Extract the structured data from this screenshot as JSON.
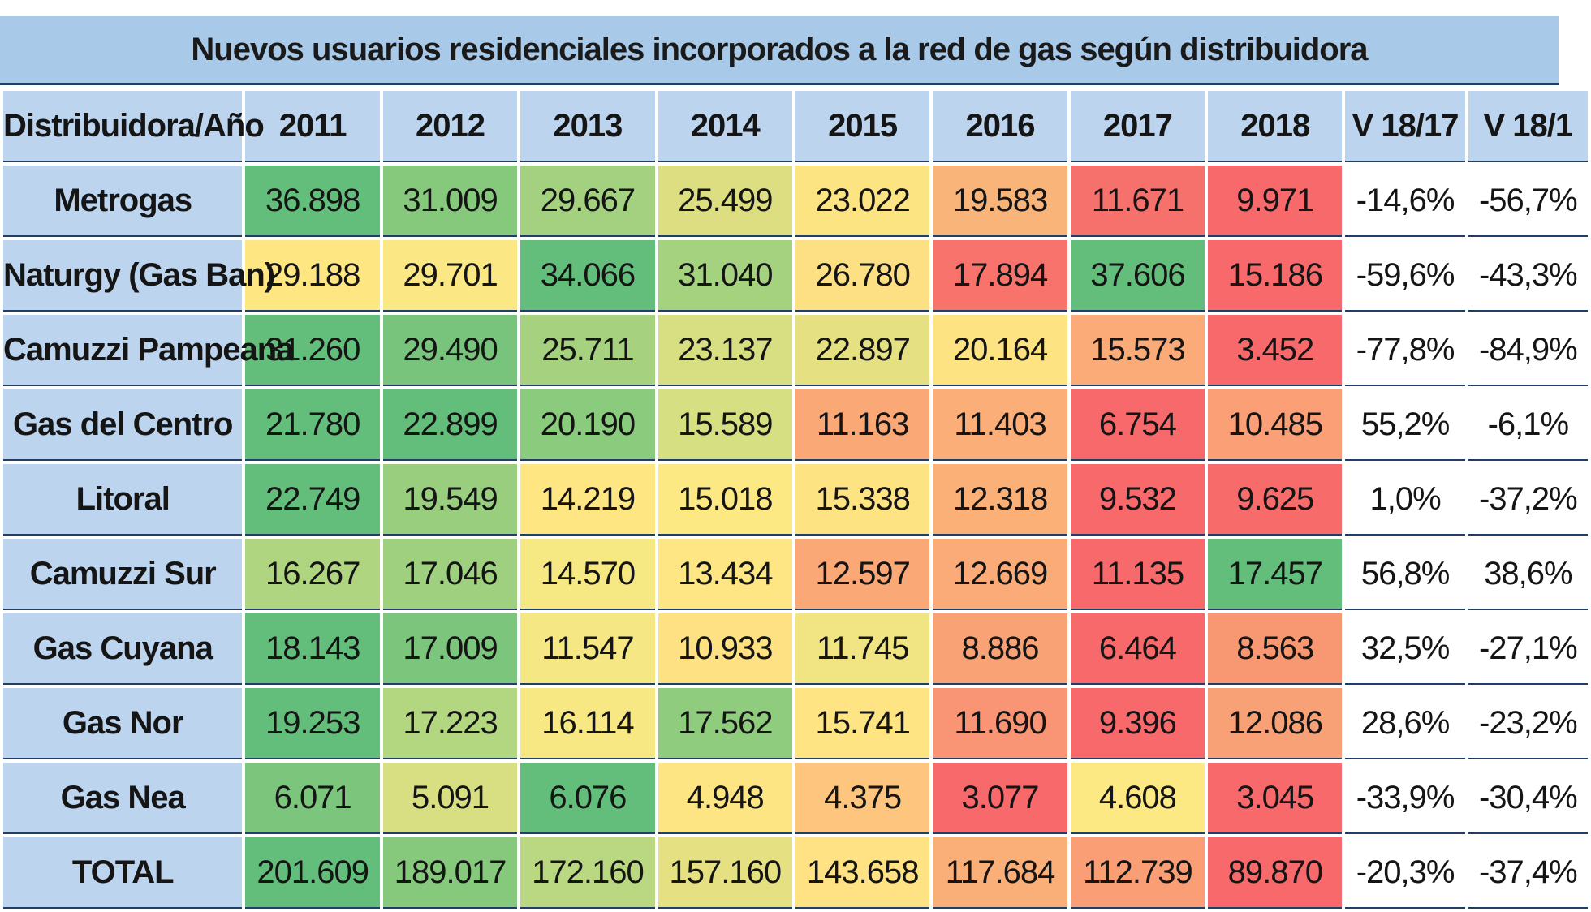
{
  "title": "Nuevos usuarios residenciales incorporados a la red de gas según distribuidora",
  "header": {
    "row_label": "Distribuidora/Año",
    "years": [
      "2011",
      "2012",
      "2013",
      "2014",
      "2015",
      "2016",
      "2017",
      "2018"
    ],
    "var1": "V 18/17",
    "var2": "V 18/1"
  },
  "rows": [
    {
      "name": "Metrogas",
      "values": [
        "36.898",
        "31.009",
        "29.667",
        "25.499",
        "23.022",
        "19.583",
        "11.671",
        "9.971"
      ],
      "var1": "-14,6%",
      "var2": "-56,7%"
    },
    {
      "name": "Naturgy (Gas Ban)",
      "values": [
        "29.188",
        "29.701",
        "34.066",
        "31.040",
        "26.780",
        "17.894",
        "37.606",
        "15.186"
      ],
      "var1": "-59,6%",
      "var2": "-43,3%"
    },
    {
      "name": "Camuzzi Pampeana",
      "values": [
        "31.260",
        "29.490",
        "25.711",
        "23.137",
        "22.897",
        "20.164",
        "15.573",
        "3.452"
      ],
      "var1": "-77,8%",
      "var2": "-84,9%"
    },
    {
      "name": "Gas del Centro",
      "values": [
        "21.780",
        "22.899",
        "20.190",
        "15.589",
        "11.163",
        "11.403",
        "6.754",
        "10.485"
      ],
      "var1": "55,2%",
      "var2": "-6,1%"
    },
    {
      "name": "Litoral",
      "values": [
        "22.749",
        "19.549",
        "14.219",
        "15.018",
        "15.338",
        "12.318",
        "9.532",
        "9.625"
      ],
      "var1": "1,0%",
      "var2": "-37,2%"
    },
    {
      "name": "Camuzzi Sur",
      "values": [
        "16.267",
        "17.046",
        "14.570",
        "13.434",
        "12.597",
        "12.669",
        "11.135",
        "17.457"
      ],
      "var1": "56,8%",
      "var2": "38,6%"
    },
    {
      "name": "Gas Cuyana",
      "values": [
        "18.143",
        "17.009",
        "11.547",
        "10.933",
        "11.745",
        "8.886",
        "6.464",
        "8.563"
      ],
      "var1": "32,5%",
      "var2": "-27,1%"
    },
    {
      "name": "Gas Nor",
      "values": [
        "19.253",
        "17.223",
        "16.114",
        "17.562",
        "15.741",
        "11.690",
        "9.396",
        "12.086"
      ],
      "var1": "28,6%",
      "var2": "-23,2%"
    },
    {
      "name": "Gas Nea",
      "values": [
        "6.071",
        "5.091",
        "6.076",
        "4.948",
        "4.375",
        "3.077",
        "4.608",
        "3.045"
      ],
      "var1": "-33,9%",
      "var2": "-30,4%"
    },
    {
      "name": "TOTAL",
      "values": [
        "201.609",
        "189.017",
        "172.160",
        "157.160",
        "143.658",
        "117.684",
        "112.739",
        "89.870"
      ],
      "var1": "-20,3%",
      "var2": "-37,4%"
    }
  ],
  "colors": {
    "rows": [
      [
        "#63be7b",
        "#86c97d",
        "#a3d17f",
        "#ddde82",
        "#fde483",
        "#f9b47a",
        "#f6716b",
        "#f8696b"
      ],
      [
        "#fee783",
        "#fbe783",
        "#63be7b",
        "#a5d27f",
        "#fde083",
        "#f8736b",
        "#63be7b",
        "#f8696b"
      ],
      [
        "#63be7b",
        "#79c47c",
        "#a6d27f",
        "#d7df82",
        "#e5e182",
        "#fde382",
        "#fbab77",
        "#f8696b"
      ],
      [
        "#63be7b",
        "#63be7b",
        "#8acb7e",
        "#d6df82",
        "#fba877",
        "#fbae78",
        "#f8696b",
        "#fba076"
      ],
      [
        "#63be7b",
        "#98ce7e",
        "#fee783",
        "#fde983",
        "#fee383",
        "#fbb078",
        "#f8696b",
        "#f86b6b"
      ],
      [
        "#b0d580",
        "#9fd07f",
        "#f6e883",
        "#fde683",
        "#fba877",
        "#fbab77",
        "#f8696b",
        "#63be7b"
      ],
      [
        "#63be7b",
        "#7cc57d",
        "#f5e783",
        "#fee183",
        "#f1e583",
        "#f9a276",
        "#f8696b",
        "#f89873"
      ],
      [
        "#63be7b",
        "#b3d680",
        "#f7e883",
        "#90cc7e",
        "#fee483",
        "#f99474",
        "#f8696b",
        "#f9a176"
      ],
      [
        "#7cc57d",
        "#d7df82",
        "#63be7b",
        "#fee583",
        "#fdc57d",
        "#f8696b",
        "#fde983",
        "#f8696b"
      ],
      [
        "#63be7b",
        "#86c97d",
        "#bad781",
        "#e5e182",
        "#fee283",
        "#fbaf78",
        "#f99e75",
        "#f8696b"
      ]
    ]
  }
}
